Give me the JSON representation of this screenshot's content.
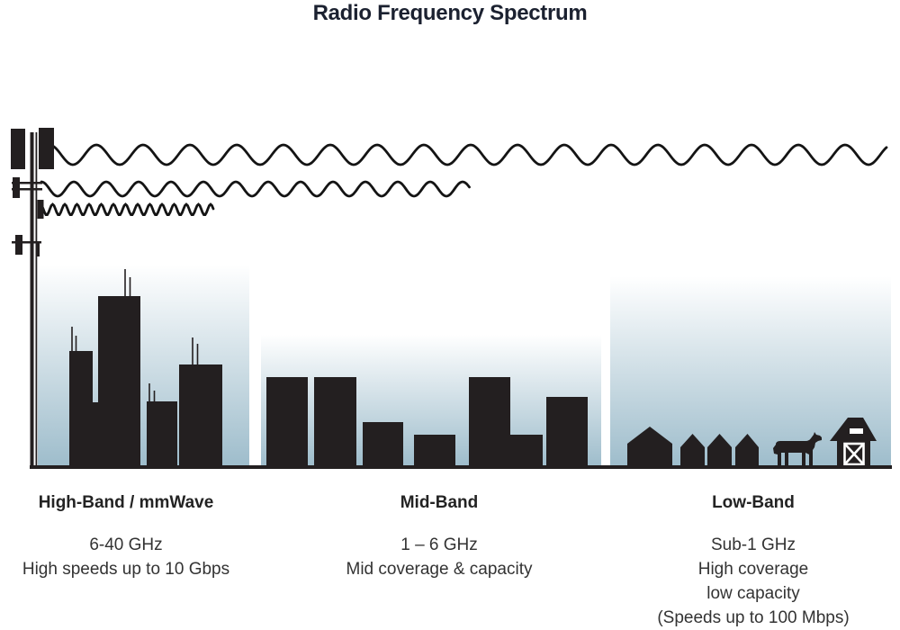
{
  "title": "Radio Frequency Spectrum",
  "bands": [
    {
      "id": "high-band",
      "heading": "High-Band / mmWave",
      "lines": [
        "6-40 GHz",
        "High speeds up to 10 Gbps"
      ]
    },
    {
      "id": "mid-band",
      "heading": "Mid-Band",
      "lines": [
        "1 – 6 GHz",
        "Mid coverage & capacity"
      ]
    },
    {
      "id": "low-band",
      "heading": "Low-Band",
      "lines": [
        "Sub-1 GHz",
        "High coverage",
        "low capacity",
        "(Speeds up to 100 Mbps)"
      ]
    }
  ],
  "illustration": {
    "icons": [
      "cell-tower-icon",
      "low-band-wave-icon",
      "mid-band-wave-icon",
      "high-band-wave-icon",
      "skyscrapers-icon",
      "mid-rise-buildings-icon",
      "houses-icon",
      "cow-icon",
      "barn-icon"
    ]
  },
  "colors": {
    "silhouette": "#231f20",
    "wave": "#141414",
    "sky_top": "#ffffff",
    "sky_bottom": "#9dbccb",
    "title_text": "#1b2130",
    "body_text": "#333333"
  }
}
